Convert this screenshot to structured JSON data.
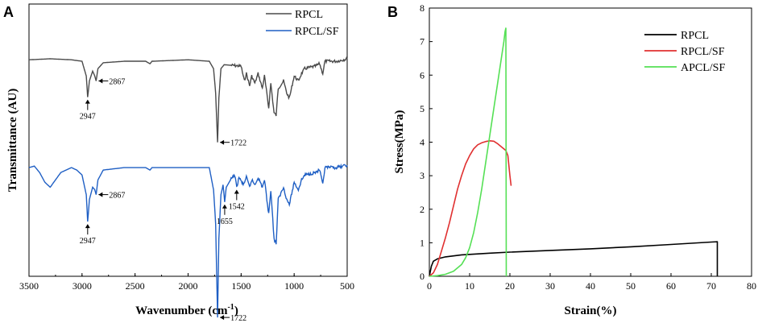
{
  "panels": {
    "a_label": "A",
    "b_label": "B"
  },
  "chart_data": [
    {
      "type": "line",
      "title": "",
      "xlabel": "Wavenumber (cm",
      "xlabel_sup": "-1",
      "xlabel_end": ")",
      "ylabel": "Transmittance (AU)",
      "xlim": [
        3500,
        500
      ],
      "x_ticks": [
        "3500",
        "3000",
        "2500",
        "2000",
        "1500",
        "1000",
        "500"
      ],
      "legend": [
        "RPCL",
        "RPCL/SF"
      ],
      "colors": {
        "RPCL": "#4a4a4a",
        "RPCL/SF": "#1f5fc4"
      },
      "series": [
        {
          "name": "RPCL",
          "baseline": 0.0,
          "points": [
            [
              3500,
              0.02
            ],
            [
              3300,
              0.0
            ],
            [
              3100,
              0.02
            ],
            [
              3000,
              0.05
            ],
            [
              2960,
              0.35
            ],
            [
              2947,
              0.78
            ],
            [
              2930,
              0.45
            ],
            [
              2900,
              0.25
            ],
            [
              2880,
              0.35
            ],
            [
              2867,
              0.45
            ],
            [
              2850,
              0.2
            ],
            [
              2800,
              0.08
            ],
            [
              2600,
              0.05
            ],
            [
              2400,
              0.05
            ],
            [
              2360,
              0.1
            ],
            [
              2340,
              0.05
            ],
            [
              2000,
              0.02
            ],
            [
              1800,
              0.05
            ],
            [
              1760,
              0.2
            ],
            [
              1740,
              0.7
            ],
            [
              1722,
              1.7
            ],
            [
              1710,
              0.8
            ],
            [
              1690,
              0.2
            ],
            [
              1660,
              0.12
            ],
            [
              1500,
              0.15
            ],
            [
              1470,
              0.45
            ],
            [
              1450,
              0.3
            ],
            [
              1420,
              0.55
            ],
            [
              1400,
              0.35
            ],
            [
              1370,
              0.5
            ],
            [
              1340,
              0.3
            ],
            [
              1300,
              0.6
            ],
            [
              1280,
              0.35
            ],
            [
              1240,
              1.0
            ],
            [
              1220,
              0.5
            ],
            [
              1190,
              1.1
            ],
            [
              1170,
              1.15
            ],
            [
              1150,
              0.6
            ],
            [
              1100,
              0.45
            ],
            [
              1070,
              0.7
            ],
            [
              1045,
              0.8
            ],
            [
              1000,
              0.35
            ],
            [
              960,
              0.45
            ],
            [
              930,
              0.3
            ],
            [
              900,
              0.2
            ],
            [
              800,
              0.15
            ],
            [
              760,
              0.1
            ],
            [
              730,
              0.3
            ],
            [
              710,
              0.05
            ],
            [
              600,
              0.05
            ],
            [
              500,
              0.0
            ]
          ],
          "annotations": [
            {
              "x": 2947,
              "label": "2947",
              "style": "below"
            },
            {
              "x": 2867,
              "label": "2867",
              "style": "right"
            },
            {
              "x": 1722,
              "label": "1722",
              "style": "right"
            }
          ]
        },
        {
          "name": "RPCL/SF",
          "baseline": 0.0,
          "points": [
            [
              3500,
              0.05
            ],
            [
              3450,
              0.02
            ],
            [
              3400,
              0.15
            ],
            [
              3350,
              0.35
            ],
            [
              3300,
              0.45
            ],
            [
              3250,
              0.3
            ],
            [
              3200,
              0.15
            ],
            [
              3100,
              0.05
            ],
            [
              3050,
              0.1
            ],
            [
              3000,
              0.2
            ],
            [
              2960,
              0.6
            ],
            [
              2947,
              1.15
            ],
            [
              2930,
              0.7
            ],
            [
              2900,
              0.45
            ],
            [
              2880,
              0.5
            ],
            [
              2867,
              0.6
            ],
            [
              2850,
              0.3
            ],
            [
              2800,
              0.1
            ],
            [
              2600,
              0.05
            ],
            [
              2400,
              0.05
            ],
            [
              2360,
              0.1
            ],
            [
              2340,
              0.05
            ],
            [
              2100,
              0.05
            ],
            [
              1900,
              0.05
            ],
            [
              1800,
              0.05
            ],
            [
              1760,
              0.5
            ],
            [
              1740,
              1.2
            ],
            [
              1722,
              3.1
            ],
            [
              1710,
              1.5
            ],
            [
              1690,
              0.6
            ],
            [
              1670,
              0.4
            ],
            [
              1655,
              0.75
            ],
            [
              1640,
              0.45
            ],
            [
              1600,
              0.3
            ],
            [
              1560,
              0.2
            ],
            [
              1542,
              0.45
            ],
            [
              1520,
              0.25
            ],
            [
              1480,
              0.4
            ],
            [
              1450,
              0.25
            ],
            [
              1420,
              0.45
            ],
            [
              1400,
              0.3
            ],
            [
              1370,
              0.4
            ],
            [
              1340,
              0.25
            ],
            [
              1300,
              0.45
            ],
            [
              1280,
              0.3
            ],
            [
              1240,
              1.0
            ],
            [
              1220,
              0.5
            ],
            [
              1190,
              1.5
            ],
            [
              1170,
              1.6
            ],
            [
              1150,
              0.7
            ],
            [
              1100,
              0.45
            ],
            [
              1070,
              0.7
            ],
            [
              1045,
              0.8
            ],
            [
              1000,
              0.35
            ],
            [
              960,
              0.5
            ],
            [
              930,
              0.3
            ],
            [
              900,
              0.2
            ],
            [
              800,
              0.15
            ],
            [
              760,
              0.1
            ],
            [
              730,
              0.4
            ],
            [
              710,
              0.05
            ],
            [
              600,
              0.05
            ],
            [
              500,
              0.0
            ]
          ],
          "annotations": [
            {
              "x": 2947,
              "label": "2947",
              "style": "below"
            },
            {
              "x": 2867,
              "label": "2867",
              "style": "right"
            },
            {
              "x": 1655,
              "label": "1655",
              "style": "below"
            },
            {
              "x": 1542,
              "label": "1542",
              "style": "below"
            },
            {
              "x": 1722,
              "label": "1722",
              "style": "right"
            }
          ]
        }
      ]
    },
    {
      "type": "line",
      "title": "",
      "xlabel": "Strain(%)",
      "ylabel": "Stress(MPa)",
      "xlim": [
        0,
        80
      ],
      "ylim": [
        0,
        8
      ],
      "x_ticks": [
        "0",
        "10",
        "20",
        "30",
        "40",
        "50",
        "60",
        "70",
        "80"
      ],
      "y_ticks": [
        "0",
        "1",
        "2",
        "3",
        "4",
        "5",
        "6",
        "7",
        "8"
      ],
      "legend": [
        "RPCL",
        "RPCL/SF",
        "APCL/SF"
      ],
      "colors": {
        "RPCL": "#000000",
        "RPCL/SF": "#e03030",
        "APCL/SF": "#55e055"
      },
      "series": [
        {
          "name": "RPCL",
          "points": [
            [
              0,
              0
            ],
            [
              0.5,
              0.3
            ],
            [
              1,
              0.45
            ],
            [
              2,
              0.52
            ],
            [
              4,
              0.58
            ],
            [
              8,
              0.64
            ],
            [
              15,
              0.69
            ],
            [
              20,
              0.72
            ],
            [
              30,
              0.77
            ],
            [
              40,
              0.82
            ],
            [
              50,
              0.88
            ],
            [
              60,
              0.95
            ],
            [
              70,
              1.02
            ],
            [
              71.5,
              1.03
            ],
            [
              71.5,
              0
            ]
          ]
        },
        {
          "name": "RPCL/SF",
          "points": [
            [
              0,
              0
            ],
            [
              1,
              0.1
            ],
            [
              2,
              0.35
            ],
            [
              3,
              0.75
            ],
            [
              4,
              1.15
            ],
            [
              5,
              1.6
            ],
            [
              6,
              2.1
            ],
            [
              7,
              2.6
            ],
            [
              8,
              3.0
            ],
            [
              9,
              3.35
            ],
            [
              10,
              3.6
            ],
            [
              11,
              3.8
            ],
            [
              12,
              3.92
            ],
            [
              13,
              3.98
            ],
            [
              14,
              4.02
            ],
            [
              15,
              4.04
            ],
            [
              16,
              4.03
            ],
            [
              17,
              3.95
            ],
            [
              18,
              3.85
            ],
            [
              19,
              3.75
            ],
            [
              19.5,
              3.6
            ],
            [
              20,
              3.0
            ],
            [
              20.3,
              2.7
            ]
          ]
        },
        {
          "name": "APCL/SF",
          "points": [
            [
              0,
              0
            ],
            [
              2,
              0.02
            ],
            [
              4,
              0.06
            ],
            [
              6,
              0.15
            ],
            [
              8,
              0.35
            ],
            [
              9,
              0.55
            ],
            [
              10,
              0.85
            ],
            [
              11,
              1.3
            ],
            [
              12,
              1.9
            ],
            [
              13,
              2.6
            ],
            [
              14,
              3.4
            ],
            [
              15,
              4.2
            ],
            [
              16,
              5.0
            ],
            [
              17,
              5.8
            ],
            [
              18,
              6.6
            ],
            [
              18.5,
              7.0
            ],
            [
              18.8,
              7.3
            ],
            [
              19,
              7.4
            ],
            [
              19.1,
              0
            ]
          ]
        }
      ]
    }
  ]
}
